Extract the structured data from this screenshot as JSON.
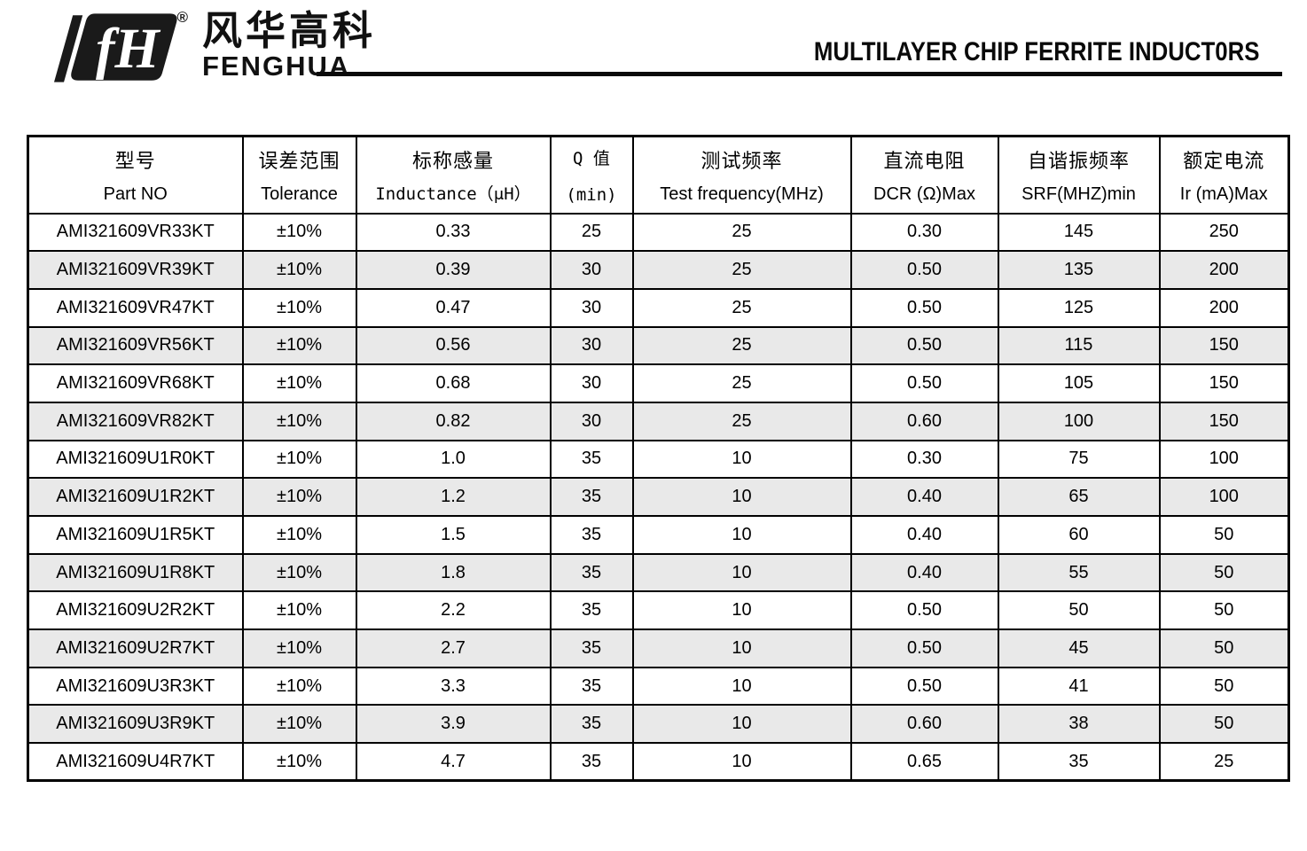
{
  "brand": {
    "logo": "fh-monogram",
    "registered": "®",
    "name_cn": "风华高科",
    "name_en": "FENGHUA"
  },
  "title": "MULTILAYER CHIP FERRITE INDUCT0RS",
  "table": {
    "columns": [
      {
        "zh": "型号",
        "en": "Part NO"
      },
      {
        "zh": "误差范围",
        "en": "Tolerance"
      },
      {
        "zh": "标称感量",
        "en": "Inductance（μH）"
      },
      {
        "zh": "Q 值",
        "en": "(min)"
      },
      {
        "zh": "测试频率",
        "en": "Test frequency(MHz)"
      },
      {
        "zh": "直流电阻",
        "en": "DCR (Ω)Max"
      },
      {
        "zh": "自谐振频率",
        "en": "SRF(MHZ)min"
      },
      {
        "zh": "额定电流",
        "en": "Ir (mA)Max"
      }
    ],
    "rows": [
      [
        "AMI321609VR33KT",
        "±10%",
        "0.33",
        "25",
        "25",
        "0.30",
        "145",
        "250"
      ],
      [
        "AMI321609VR39KT",
        "±10%",
        "0.39",
        "30",
        "25",
        "0.50",
        "135",
        "200"
      ],
      [
        "AMI321609VR47KT",
        "±10%",
        "0.47",
        "30",
        "25",
        "0.50",
        "125",
        "200"
      ],
      [
        "AMI321609VR56KT",
        "±10%",
        "0.56",
        "30",
        "25",
        "0.50",
        "115",
        "150"
      ],
      [
        "AMI321609VR68KT",
        "±10%",
        "0.68",
        "30",
        "25",
        "0.50",
        "105",
        "150"
      ],
      [
        "AMI321609VR82KT",
        "±10%",
        "0.82",
        "30",
        "25",
        "0.60",
        "100",
        "150"
      ],
      [
        "AMI321609U1R0KT",
        "±10%",
        "1.0",
        "35",
        "10",
        "0.30",
        "75",
        "100"
      ],
      [
        "AMI321609U1R2KT",
        "±10%",
        "1.2",
        "35",
        "10",
        "0.40",
        "65",
        "100"
      ],
      [
        "AMI321609U1R5KT",
        "±10%",
        "1.5",
        "35",
        "10",
        "0.40",
        "60",
        "50"
      ],
      [
        "AMI321609U1R8KT",
        "±10%",
        "1.8",
        "35",
        "10",
        "0.40",
        "55",
        "50"
      ],
      [
        "AMI321609U2R2KT",
        "±10%",
        "2.2",
        "35",
        "10",
        "0.50",
        "50",
        "50"
      ],
      [
        "AMI321609U2R7KT",
        "±10%",
        "2.7",
        "35",
        "10",
        "0.50",
        "45",
        "50"
      ],
      [
        "AMI321609U3R3KT",
        "±10%",
        "3.3",
        "35",
        "10",
        "0.50",
        "41",
        "50"
      ],
      [
        "AMI321609U3R9KT",
        "±10%",
        "3.9",
        "35",
        "10",
        "0.60",
        "38",
        "50"
      ],
      [
        "AMI321609U4R7KT",
        "±10%",
        "4.7",
        "35",
        "10",
        "0.65",
        "35",
        "25"
      ]
    ]
  },
  "colors": {
    "ink": "#000000",
    "row_alt": "#e9e9e9",
    "border": "#000000"
  }
}
